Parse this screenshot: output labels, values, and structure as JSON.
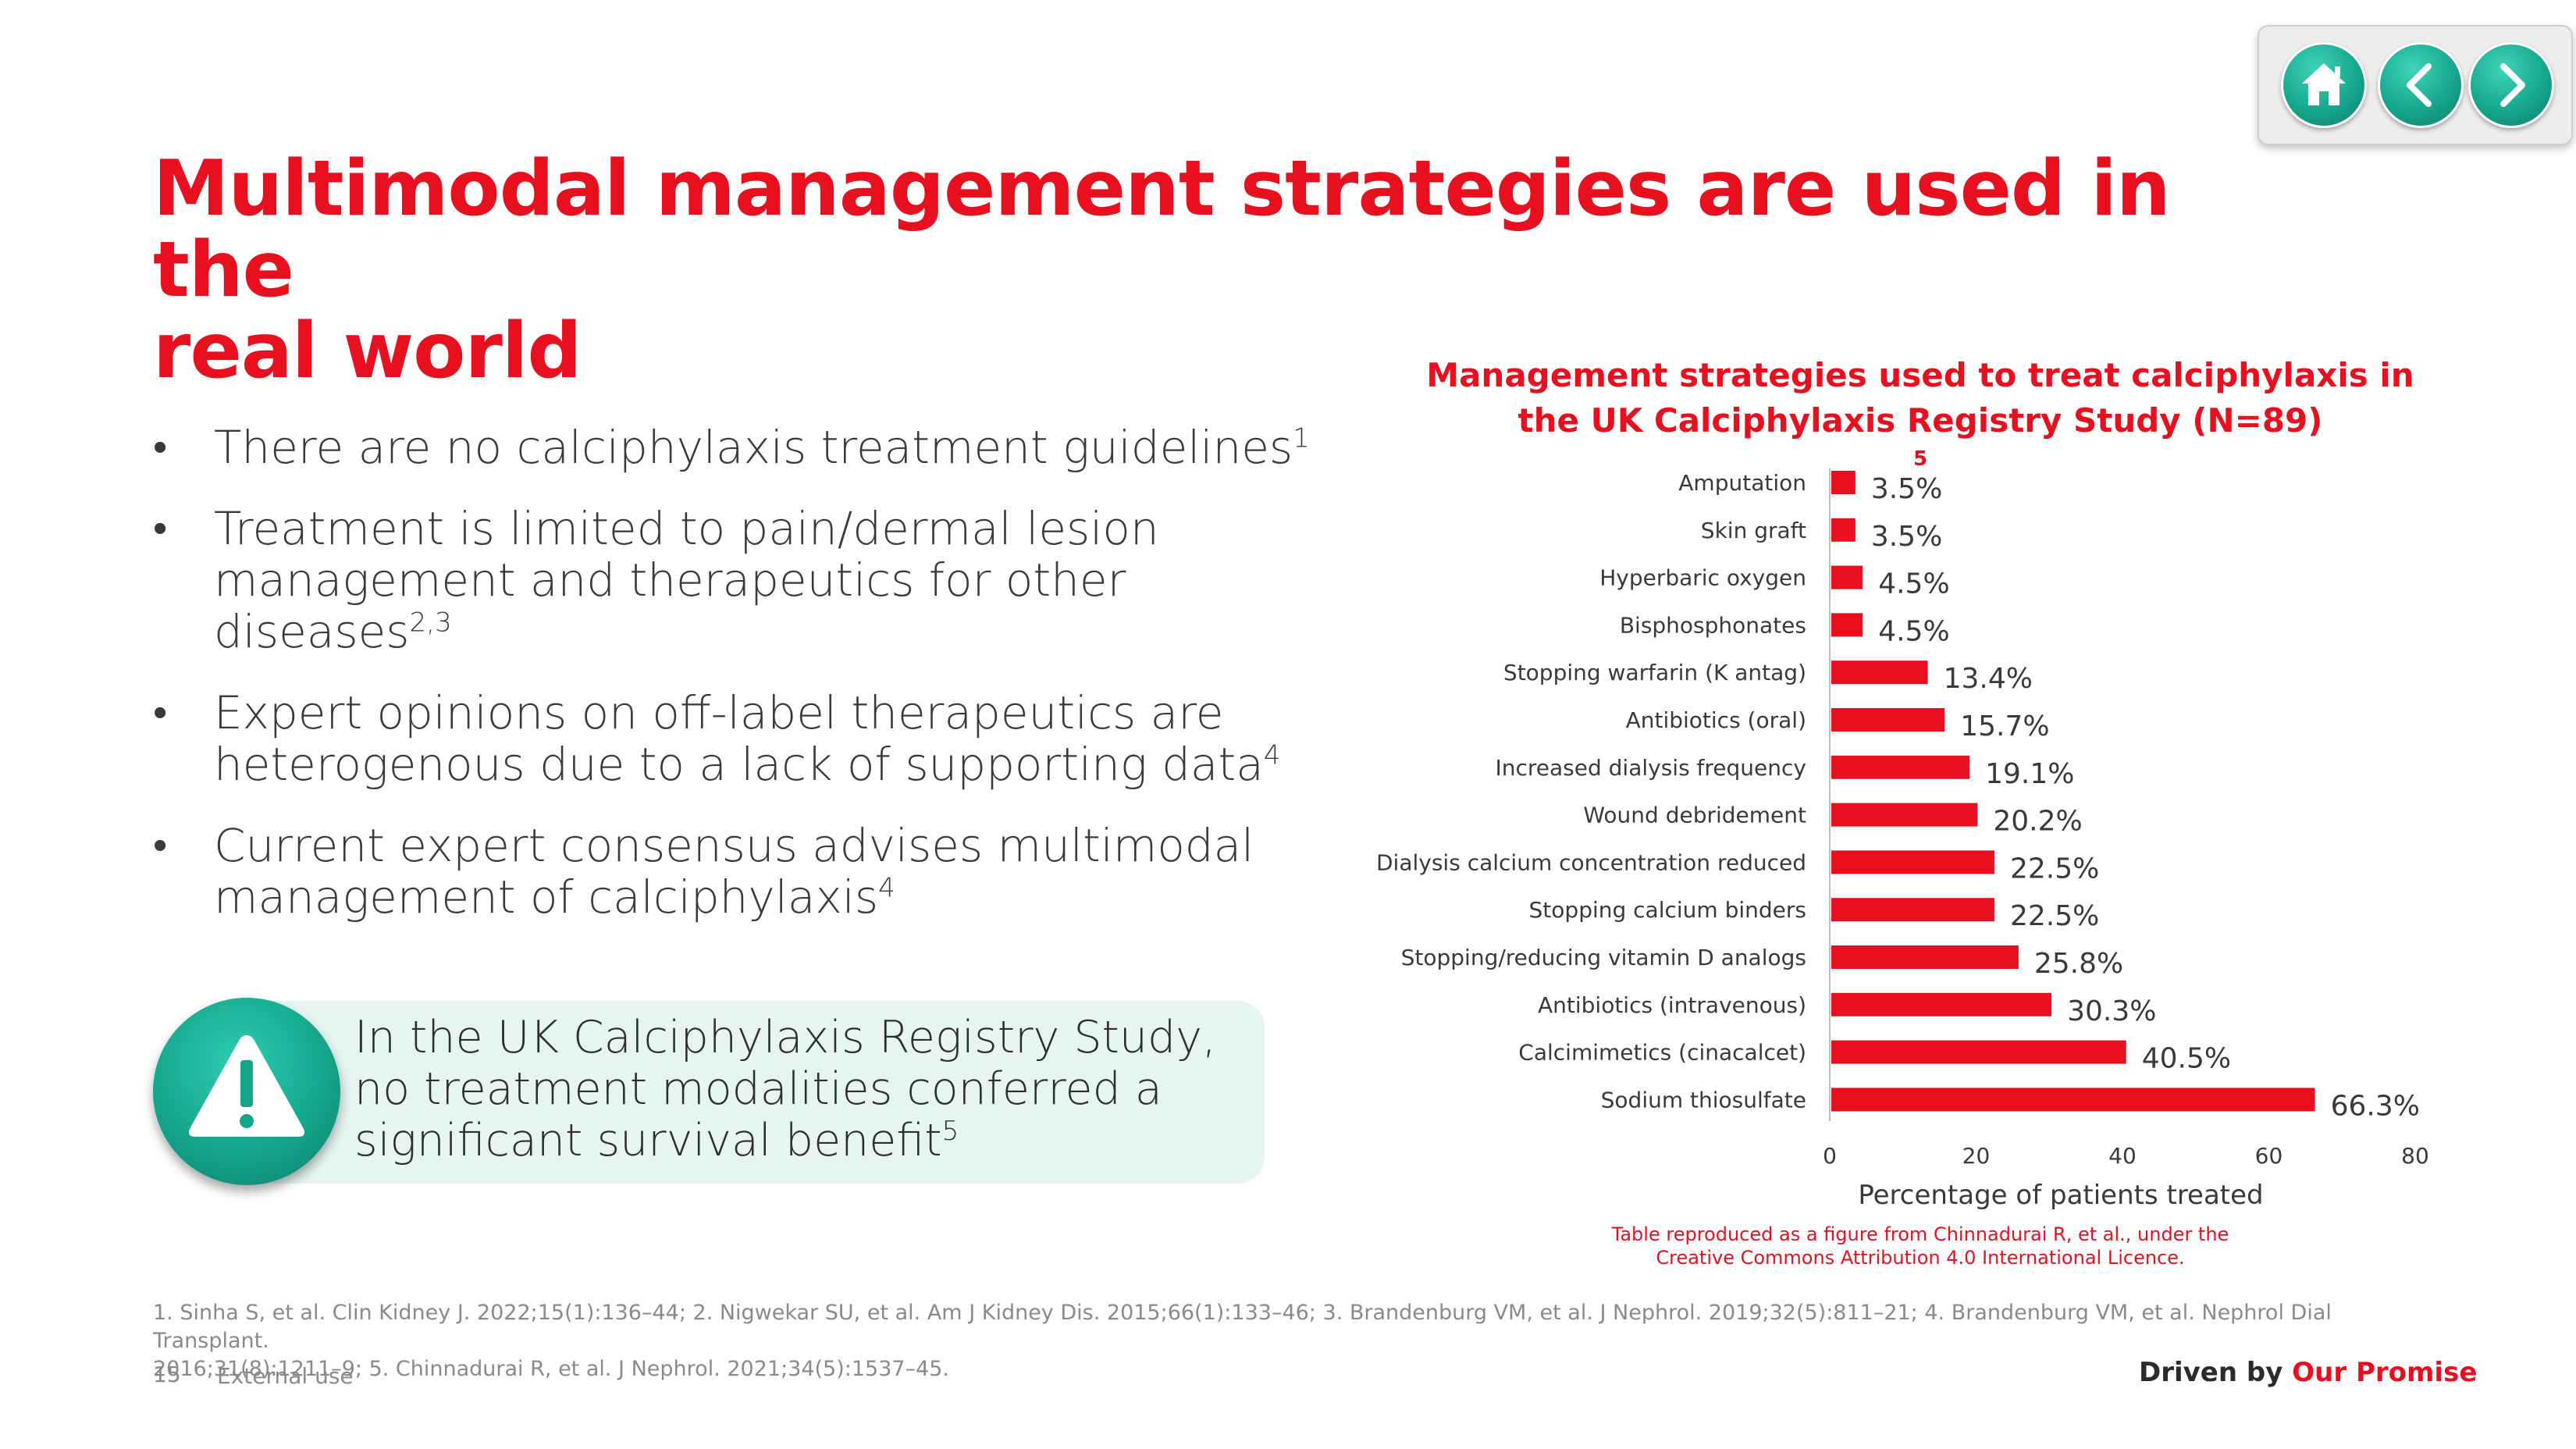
{
  "nav": {
    "home_label": "Home",
    "prev_label": "Previous",
    "next_label": "Next"
  },
  "title": {
    "line1": "Multimodal management strategies are used in the",
    "line2": "real world"
  },
  "bullets": [
    {
      "lines": [
        "There are no calciphylaxis treatment guidelines"
      ],
      "sup": "1"
    },
    {
      "lines": [
        "Treatment is limited to pain/dermal lesion",
        "management and therapeutics for other diseases"
      ],
      "sup": "2,3"
    },
    {
      "lines": [
        "Expert opinions on off-label therapeutics are",
        "heterogenous due to a lack of supporting data"
      ],
      "sup": "4"
    },
    {
      "lines": [
        "Current expert consensus advises multimodal",
        "management of calciphylaxis"
      ],
      "sup": "4"
    }
  ],
  "callout": {
    "line1": "In the UK Calciphylaxis Registry Study,",
    "line2": "no treatment modalities conferred a",
    "line3": "significant survival benefit",
    "sup": "5"
  },
  "chart_data": {
    "type": "bar",
    "orientation": "horizontal",
    "title_line1": "Management strategies used to treat calciphylaxis in",
    "title_line2": "the UK Calciphylaxis Registry Study (N=89)",
    "title_sup": "5",
    "categories": [
      "Amputation",
      "Skin graft",
      "Hyperbaric oxygen",
      "Bisphosphonates",
      "Stopping warfarin (K antag)",
      "Antibiotics (oral)",
      "Increased dialysis frequency",
      "Wound debridement",
      "Dialysis calcium concentration reduced",
      "Stopping calcium binders",
      "Stopping/reducing vitamin D analogs",
      "Antibiotics (intravenous)",
      "Calcimimetics (cinacalcet)",
      "Sodium thiosulfate"
    ],
    "values": [
      3.5,
      3.5,
      4.5,
      4.5,
      13.4,
      15.7,
      19.1,
      20.2,
      22.5,
      22.5,
      25.8,
      30.3,
      40.5,
      66.3
    ],
    "value_labels": [
      "3.5%",
      "3.5%",
      "4.5%",
      "4.5%",
      "13.4%",
      "15.7%",
      "19.1%",
      "20.2%",
      "22.5%",
      "22.5%",
      "25.8%",
      "30.3%",
      "40.5%",
      "66.3%"
    ],
    "xlabel": "Percentage of patients treated",
    "ylabel": "",
    "xlim": [
      0,
      80
    ],
    "xticks": [
      "0",
      "20",
      "40",
      "60",
      "80"
    ],
    "bar_color": "#e8101f",
    "grid": false
  },
  "source_note": {
    "line1": "Table reproduced as a figure from Chinnadurai R, et al., under the",
    "line2": "Creative Commons Attribution 4.0 International Licence."
  },
  "references": {
    "line1": "1. Sinha S, et al. Clin Kidney J. 2022;15(1):136–44; 2. Nigwekar SU, et al. Am J Kidney Dis. 2015;66(1):133–46; 3. Brandenburg VM, et al. J Nephrol. 2019;32(5):811–21; 4. Brandenburg VM, et al. Nephrol Dial Transplant.",
    "line2": "2016;31(8):1211–9; 5. Chinnadurai R, et al. J Nephrol. 2021;34(5):1537–45."
  },
  "footer": {
    "page_number": "15",
    "classification": "External use",
    "tagline_prefix": "Driven by ",
    "tagline_emphasis": "Our Promise"
  },
  "colors": {
    "accent_red": "#e8101f",
    "teal": "#16a88e",
    "callout_bg": "#e6f5f1"
  }
}
